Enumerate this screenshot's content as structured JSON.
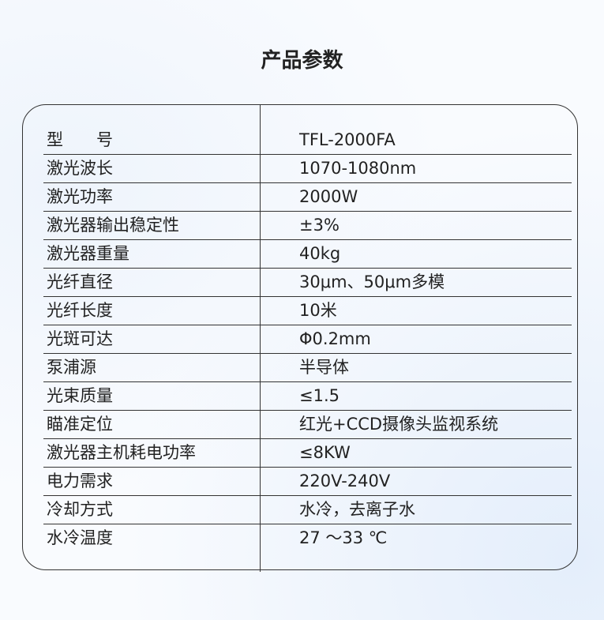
{
  "header": {
    "title": "产品参数"
  },
  "table": {
    "rows": [
      [
        "型　　号",
        "TFL-2000FA"
      ],
      [
        "激光波长",
        "1070-1080nm"
      ],
      [
        "激光功率",
        "2000W"
      ],
      [
        "激光器输出稳定性",
        "±3%"
      ],
      [
        "激光器重量",
        "40kg"
      ],
      [
        "光纤直径",
        "30μm、50μm多模"
      ],
      [
        "光纤长度",
        "10米"
      ],
      [
        "光斑可达",
        "Φ0.2mm"
      ],
      [
        "泵浦源",
        "半导体"
      ],
      [
        "光束质量",
        "≤1.5"
      ],
      [
        "瞄准定位",
        "红光+CCD摄像头监视系统"
      ],
      [
        "激光器主机耗电功率",
        "≤8KW"
      ],
      [
        "电力需求",
        "220V-240V"
      ],
      [
        "冷却方式",
        "水冷，去离子水"
      ],
      [
        "水冷温度",
        "27 ～33 ℃"
      ]
    ]
  }
}
